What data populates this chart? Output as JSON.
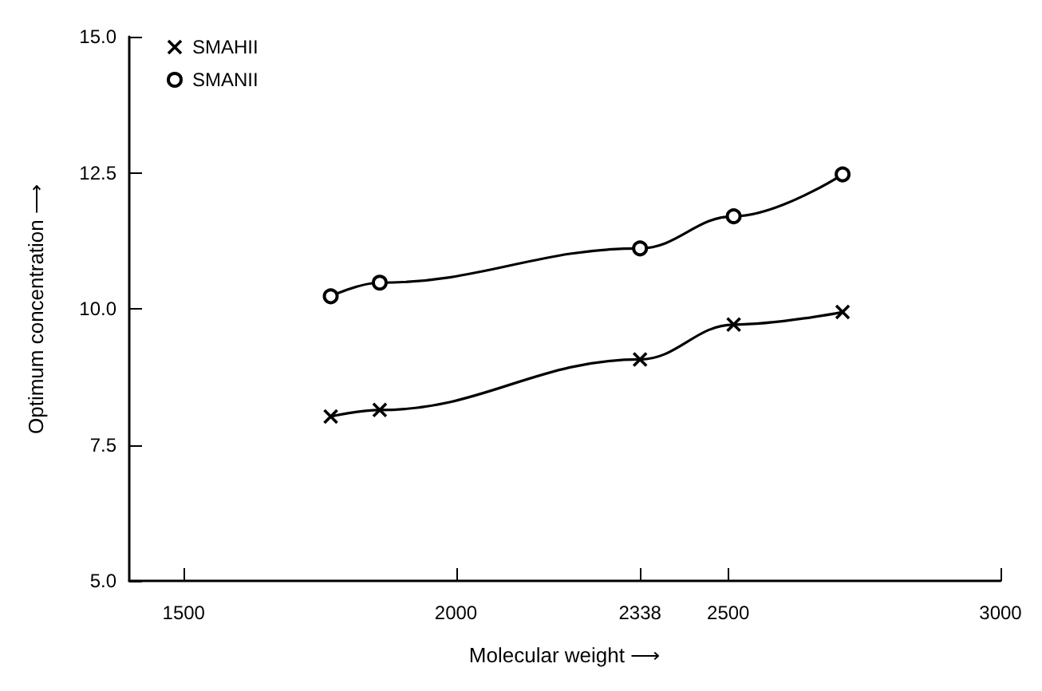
{
  "chart_data": {
    "type": "line",
    "xlabel": "Molecular weight ⟶",
    "ylabel": "Optimum concentration ⟶",
    "series": [
      {
        "name": "SMAHII",
        "color": "#000000",
        "marker": "cross",
        "x": [
          1770,
          1860,
          2338,
          2510,
          2710
        ],
        "values": [
          8.02,
          8.14,
          9.07,
          9.71,
          9.94
        ]
      },
      {
        "name": "SMANII",
        "color": "#000000",
        "marker": "circle",
        "x": [
          1770,
          1860,
          2338,
          2510,
          2710
        ],
        "values": [
          10.23,
          10.48,
          11.11,
          11.7,
          12.47
        ]
      }
    ],
    "xlim": [
      1400,
      3000
    ],
    "xticks": [
      1500,
      2000,
      2338,
      2500,
      3000
    ],
    "ylim": [
      5,
      15
    ],
    "yticks": [
      {
        "value": 5,
        "label": "5.0"
      },
      {
        "value": 7.5,
        "label": "7.5"
      },
      {
        "value": 10,
        "label": "10.0"
      },
      {
        "value": 12.5,
        "label": "12.5"
      },
      {
        "value": 15,
        "label": "15.0"
      }
    ],
    "grid": false,
    "legend": "top left",
    "line_style": "solid"
  }
}
